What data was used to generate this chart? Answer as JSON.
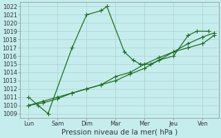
{
  "x_labels": [
    "Lun",
    "Sam",
    "Dim",
    "Mar",
    "Mer",
    "Jeu",
    "Ven"
  ],
  "x_tick_pos": [
    0,
    1,
    2,
    3,
    4,
    5,
    6
  ],
  "series1_x": [
    0,
    0.33,
    0.67,
    1.5,
    2.0,
    2.5,
    2.7,
    3.3,
    3.6,
    3.85,
    4.2,
    4.5,
    5.0,
    5.5,
    5.8,
    6.2
  ],
  "series1_y": [
    1011,
    1010,
    1009,
    1017,
    1021,
    1021.5,
    1022,
    1016.5,
    1015.5,
    1015,
    1015,
    1015.5,
    1016,
    1018.5,
    1019,
    1019
  ],
  "series2_x": [
    0,
    0.5,
    1.0,
    1.5,
    2.0,
    2.5,
    3.0,
    3.5,
    4.0,
    4.5,
    5.0,
    5.5,
    6.0,
    6.4
  ],
  "series2_y": [
    1010,
    1010.5,
    1011,
    1011.5,
    1012,
    1012.5,
    1013,
    1013.8,
    1014.5,
    1015.5,
    1016.5,
    1017,
    1017.5,
    1018.5
  ],
  "series3_x": [
    0,
    0.5,
    1.0,
    1.5,
    2.0,
    2.5,
    3.0,
    3.5,
    4.0,
    4.5,
    5.0,
    5.5,
    6.0,
    6.4
  ],
  "series3_y": [
    1010,
    1010.3,
    1010.8,
    1011.5,
    1012,
    1012.5,
    1013.5,
    1014.0,
    1015.0,
    1015.8,
    1016.5,
    1017.5,
    1018.3,
    1018.8
  ],
  "ylim_min": 1008.5,
  "ylim_max": 1022.5,
  "ytick_min": 1009,
  "ytick_max": 1022,
  "xlim_min": -0.3,
  "xlim_max": 6.55,
  "xlabel": "Pression niveau de la mer( hPa )",
  "line_color": "#1a6b1a",
  "bg_color": "#c5eded",
  "grid_color": "#b0cccc",
  "marker": "+",
  "marker_size": 4,
  "marker_lw": 0.8,
  "line_width": 0.9,
  "xlabel_fontsize": 7.5,
  "tick_fontsize": 6.0
}
